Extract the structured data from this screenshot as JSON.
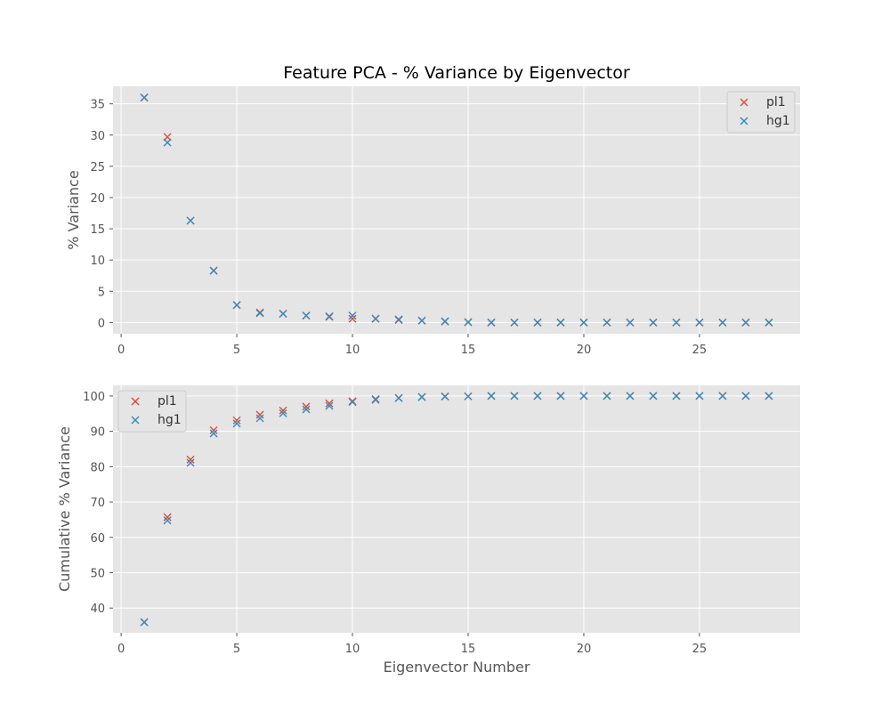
{
  "chart_data": [
    {
      "type": "scatter",
      "title": "Feature PCA - % Variance by Eigenvector",
      "xlabel": "",
      "ylabel": "% Variance",
      "xlim": [
        -0.35,
        29.35
      ],
      "ylim": [
        -1.8,
        37.8
      ],
      "xticks": [
        0,
        5,
        10,
        15,
        20,
        25
      ],
      "yticks": [
        0,
        5,
        10,
        15,
        20,
        25,
        30,
        35
      ],
      "grid": true,
      "legend_position": "top-right",
      "series": [
        {
          "name": "pl1",
          "color": "#E24A33",
          "marker": "x",
          "x": [
            1,
            2,
            3,
            4,
            5,
            6,
            7,
            8,
            9,
            10,
            11,
            12,
            13,
            14,
            15,
            16,
            17,
            18,
            19,
            20,
            21,
            22,
            23,
            24,
            25,
            26,
            27,
            28
          ],
          "y": [
            36.0,
            29.7,
            16.3,
            8.3,
            2.8,
            1.6,
            1.4,
            1.1,
            0.9,
            0.6,
            0.6,
            0.4,
            0.3,
            0.15,
            0.05,
            0,
            0,
            0,
            0,
            0,
            0,
            0,
            0,
            0,
            0,
            0,
            0,
            0
          ]
        },
        {
          "name": "hg1",
          "color": "#348ABD",
          "marker": "x",
          "x": [
            1,
            2,
            3,
            4,
            5,
            6,
            7,
            8,
            9,
            10,
            11,
            12,
            13,
            14,
            15,
            16,
            17,
            18,
            19,
            20,
            21,
            22,
            23,
            24,
            25,
            26,
            27,
            28
          ],
          "y": [
            36.0,
            28.8,
            16.3,
            8.3,
            2.8,
            1.5,
            1.4,
            1.1,
            1.0,
            1.1,
            0.6,
            0.5,
            0.3,
            0.2,
            0.05,
            0,
            0,
            0,
            0,
            0,
            0,
            0,
            0,
            0,
            0,
            0,
            0,
            0
          ]
        }
      ]
    },
    {
      "type": "scatter",
      "title": "",
      "xlabel": "Eigenvector Number",
      "ylabel": "Cumulative % Variance",
      "xlim": [
        -0.35,
        29.35
      ],
      "ylim": [
        33.0,
        103.0
      ],
      "xticks": [
        0,
        5,
        10,
        15,
        20,
        25
      ],
      "yticks": [
        40,
        50,
        60,
        70,
        80,
        90,
        100
      ],
      "grid": true,
      "legend_position": "top-left",
      "series": [
        {
          "name": "pl1",
          "color": "#E24A33",
          "marker": "x",
          "x": [
            1,
            2,
            3,
            4,
            5,
            6,
            7,
            8,
            9,
            10,
            11,
            12,
            13,
            14,
            15,
            16,
            17,
            18,
            19,
            20,
            21,
            22,
            23,
            24,
            25,
            26,
            27,
            28
          ],
          "y": [
            36.0,
            65.7,
            82.0,
            90.3,
            93.1,
            94.7,
            95.9,
            97.0,
            97.9,
            98.5,
            99.1,
            99.4,
            99.7,
            99.85,
            99.9,
            100,
            100,
            100,
            100,
            100,
            100,
            100,
            100,
            100,
            100,
            100,
            100,
            100
          ]
        },
        {
          "name": "hg1",
          "color": "#348ABD",
          "marker": "x",
          "x": [
            1,
            2,
            3,
            4,
            5,
            6,
            7,
            8,
            9,
            10,
            11,
            12,
            13,
            14,
            15,
            16,
            17,
            18,
            19,
            20,
            21,
            22,
            23,
            24,
            25,
            26,
            27,
            28
          ],
          "y": [
            36.0,
            64.8,
            81.1,
            89.4,
            92.2,
            93.7,
            95.1,
            96.2,
            97.2,
            98.3,
            98.9,
            99.4,
            99.7,
            99.85,
            99.9,
            100,
            100,
            100,
            100,
            100,
            100,
            100,
            100,
            100,
            100,
            100,
            100,
            100
          ]
        }
      ]
    }
  ]
}
